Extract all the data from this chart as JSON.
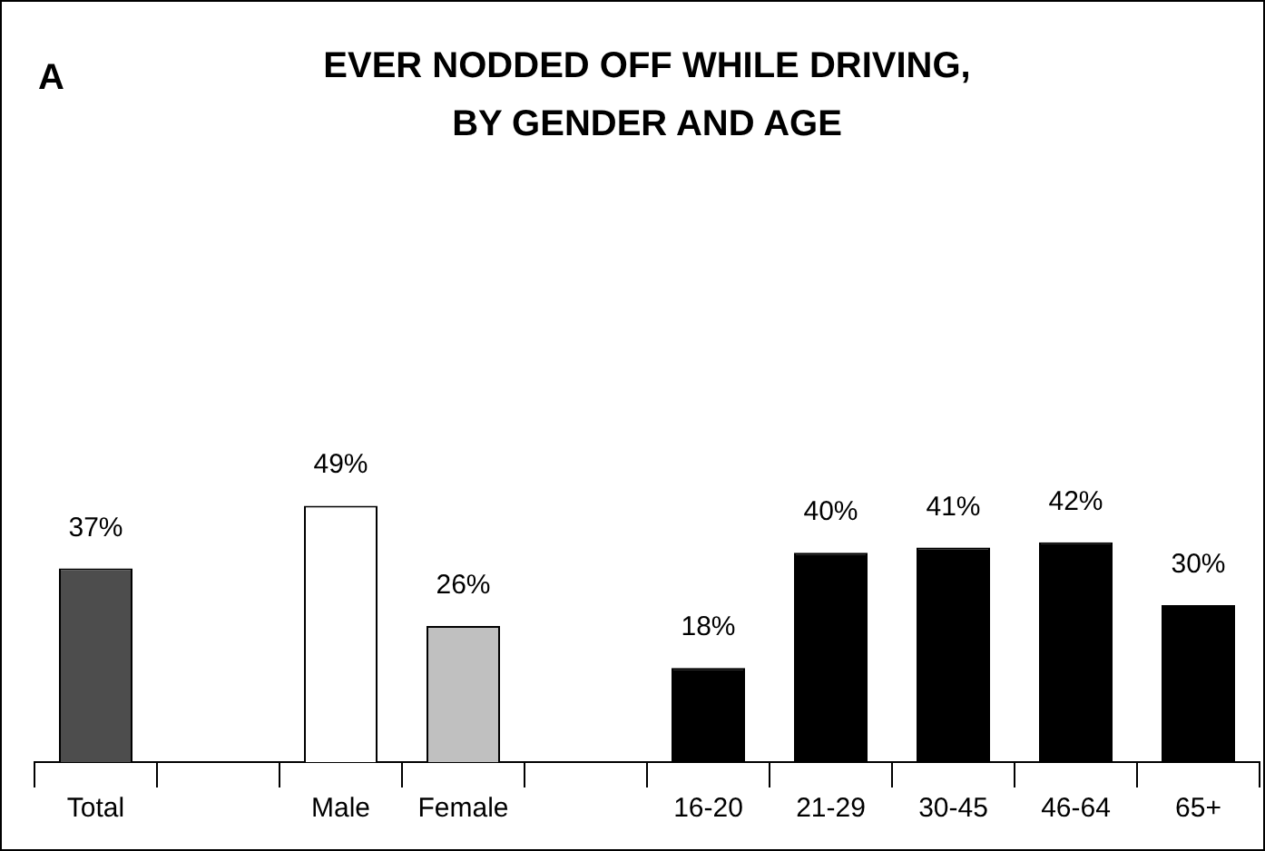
{
  "chart_data": {
    "type": "bar",
    "title": "EVER NODDED OFF WHILE DRIVING,\nBY GENDER AND AGE",
    "categories": [
      "Total",
      null,
      "Male",
      "Female",
      null,
      "16-20",
      "21-29",
      "30-45",
      "46-64",
      "65+"
    ],
    "values": [
      37,
      null,
      49,
      26,
      null,
      18,
      40,
      41,
      42,
      30
    ],
    "colors": [
      "#4d4d4d",
      "#000000",
      "#ffffff",
      "#c0c0c0",
      "#000000",
      "#000000",
      "#000000",
      "#000000",
      "#000000",
      "#000000"
    ],
    "value_labels": [
      "37%",
      null,
      "49%",
      "26%",
      null,
      "18%",
      "40%",
      "41%",
      "42%",
      "30%"
    ],
    "grid": false,
    "legend": false,
    "annotations": [
      "A"
    ]
  }
}
